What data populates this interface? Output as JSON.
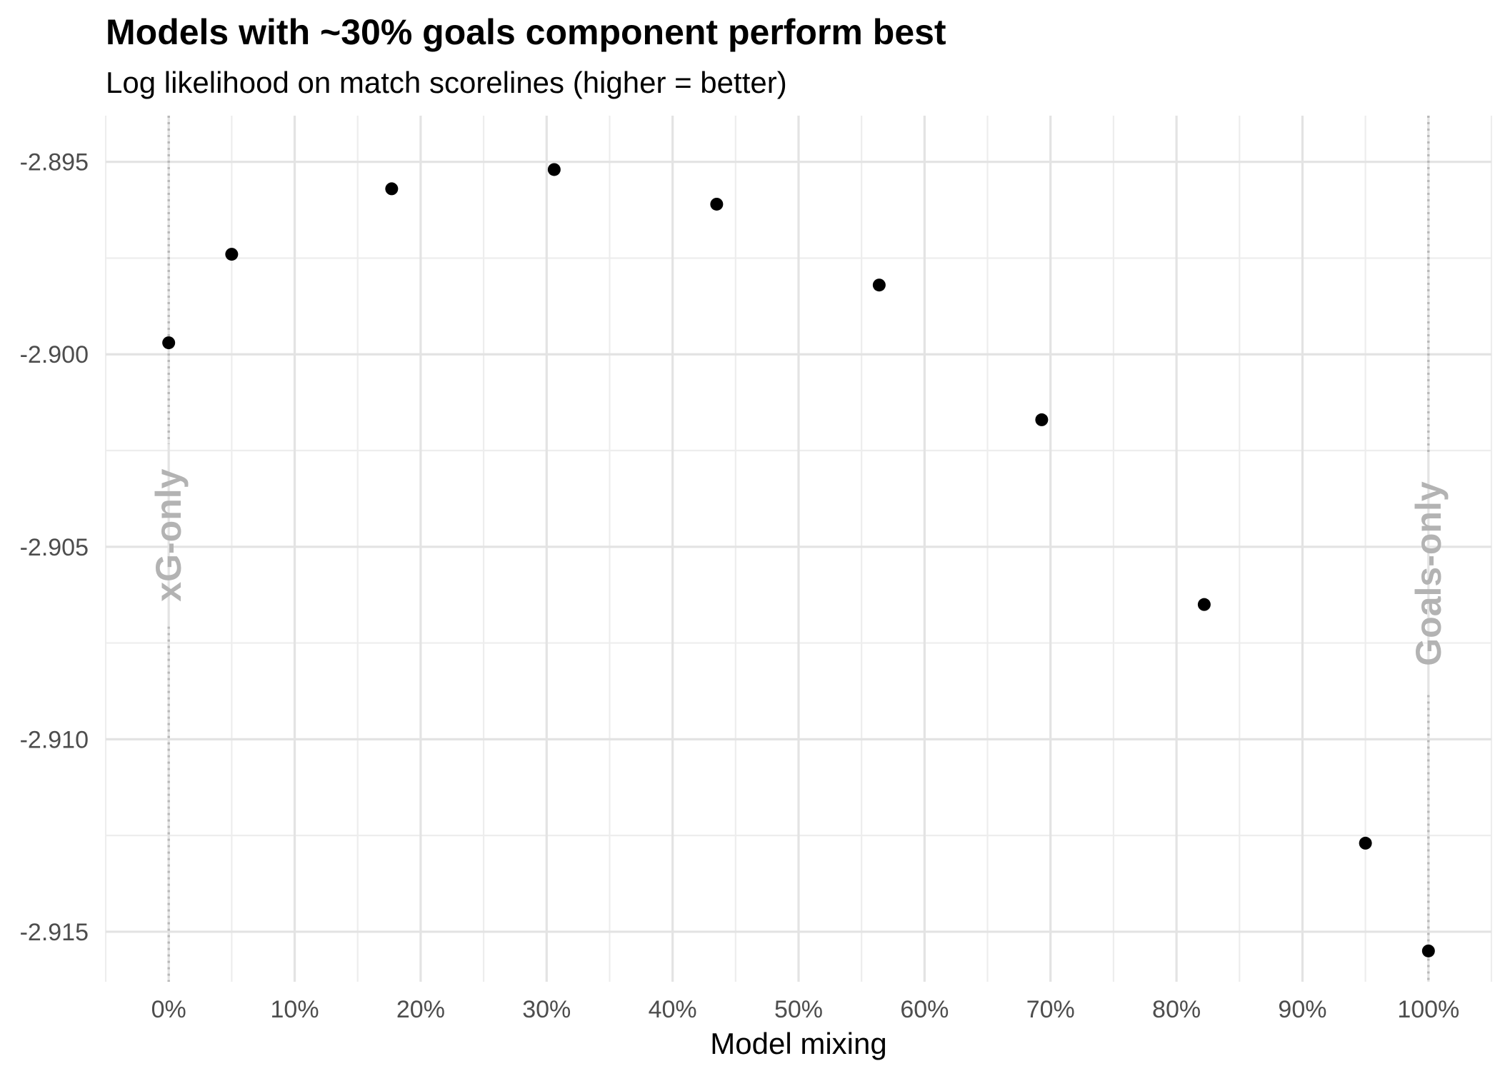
{
  "chart_data": {
    "type": "scatter",
    "title": "Models with ~30% goals component perform best",
    "subtitle": "Log likelihood on match scorelines (higher = better)",
    "xlabel": "Model mixing",
    "ylabel": "",
    "xlim": [
      -0.05,
      1.05
    ],
    "ylim": [
      -2.9163,
      -2.8938
    ],
    "x_ticks": [
      0,
      0.1,
      0.2,
      0.3,
      0.4,
      0.5,
      0.6,
      0.7,
      0.8,
      0.9,
      1.0
    ],
    "x_tick_labels": [
      "0%",
      "10%",
      "20%",
      "30%",
      "40%",
      "50%",
      "60%",
      "70%",
      "80%",
      "90%",
      "100%"
    ],
    "y_ticks": [
      -2.895,
      -2.9,
      -2.905,
      -2.91,
      -2.915
    ],
    "y_tick_labels": [
      "-2.895",
      "-2.900",
      "-2.905",
      "-2.910",
      "-2.915"
    ],
    "grid": true,
    "points": [
      {
        "x": 0.0,
        "y": -2.8997
      },
      {
        "x": 0.05,
        "y": -2.8974
      },
      {
        "x": 0.177,
        "y": -2.8957
      },
      {
        "x": 0.306,
        "y": -2.8952
      },
      {
        "x": 0.435,
        "y": -2.8961
      },
      {
        "x": 0.564,
        "y": -2.8982
      },
      {
        "x": 0.693,
        "y": -2.9017
      },
      {
        "x": 0.822,
        "y": -2.9065
      },
      {
        "x": 0.95,
        "y": -2.9127
      },
      {
        "x": 1.0,
        "y": -2.9155
      }
    ],
    "reference_lines": [
      {
        "x": 0.0,
        "label": "xG-only"
      },
      {
        "x": 1.0,
        "label": "Goals-only"
      }
    ],
    "colors": {
      "points": "#000000",
      "reference_line": "#b8b8b8",
      "annotation": "#b3b3b3",
      "grid_major": "#e3e3e3",
      "grid_minor": "#ededed"
    }
  }
}
